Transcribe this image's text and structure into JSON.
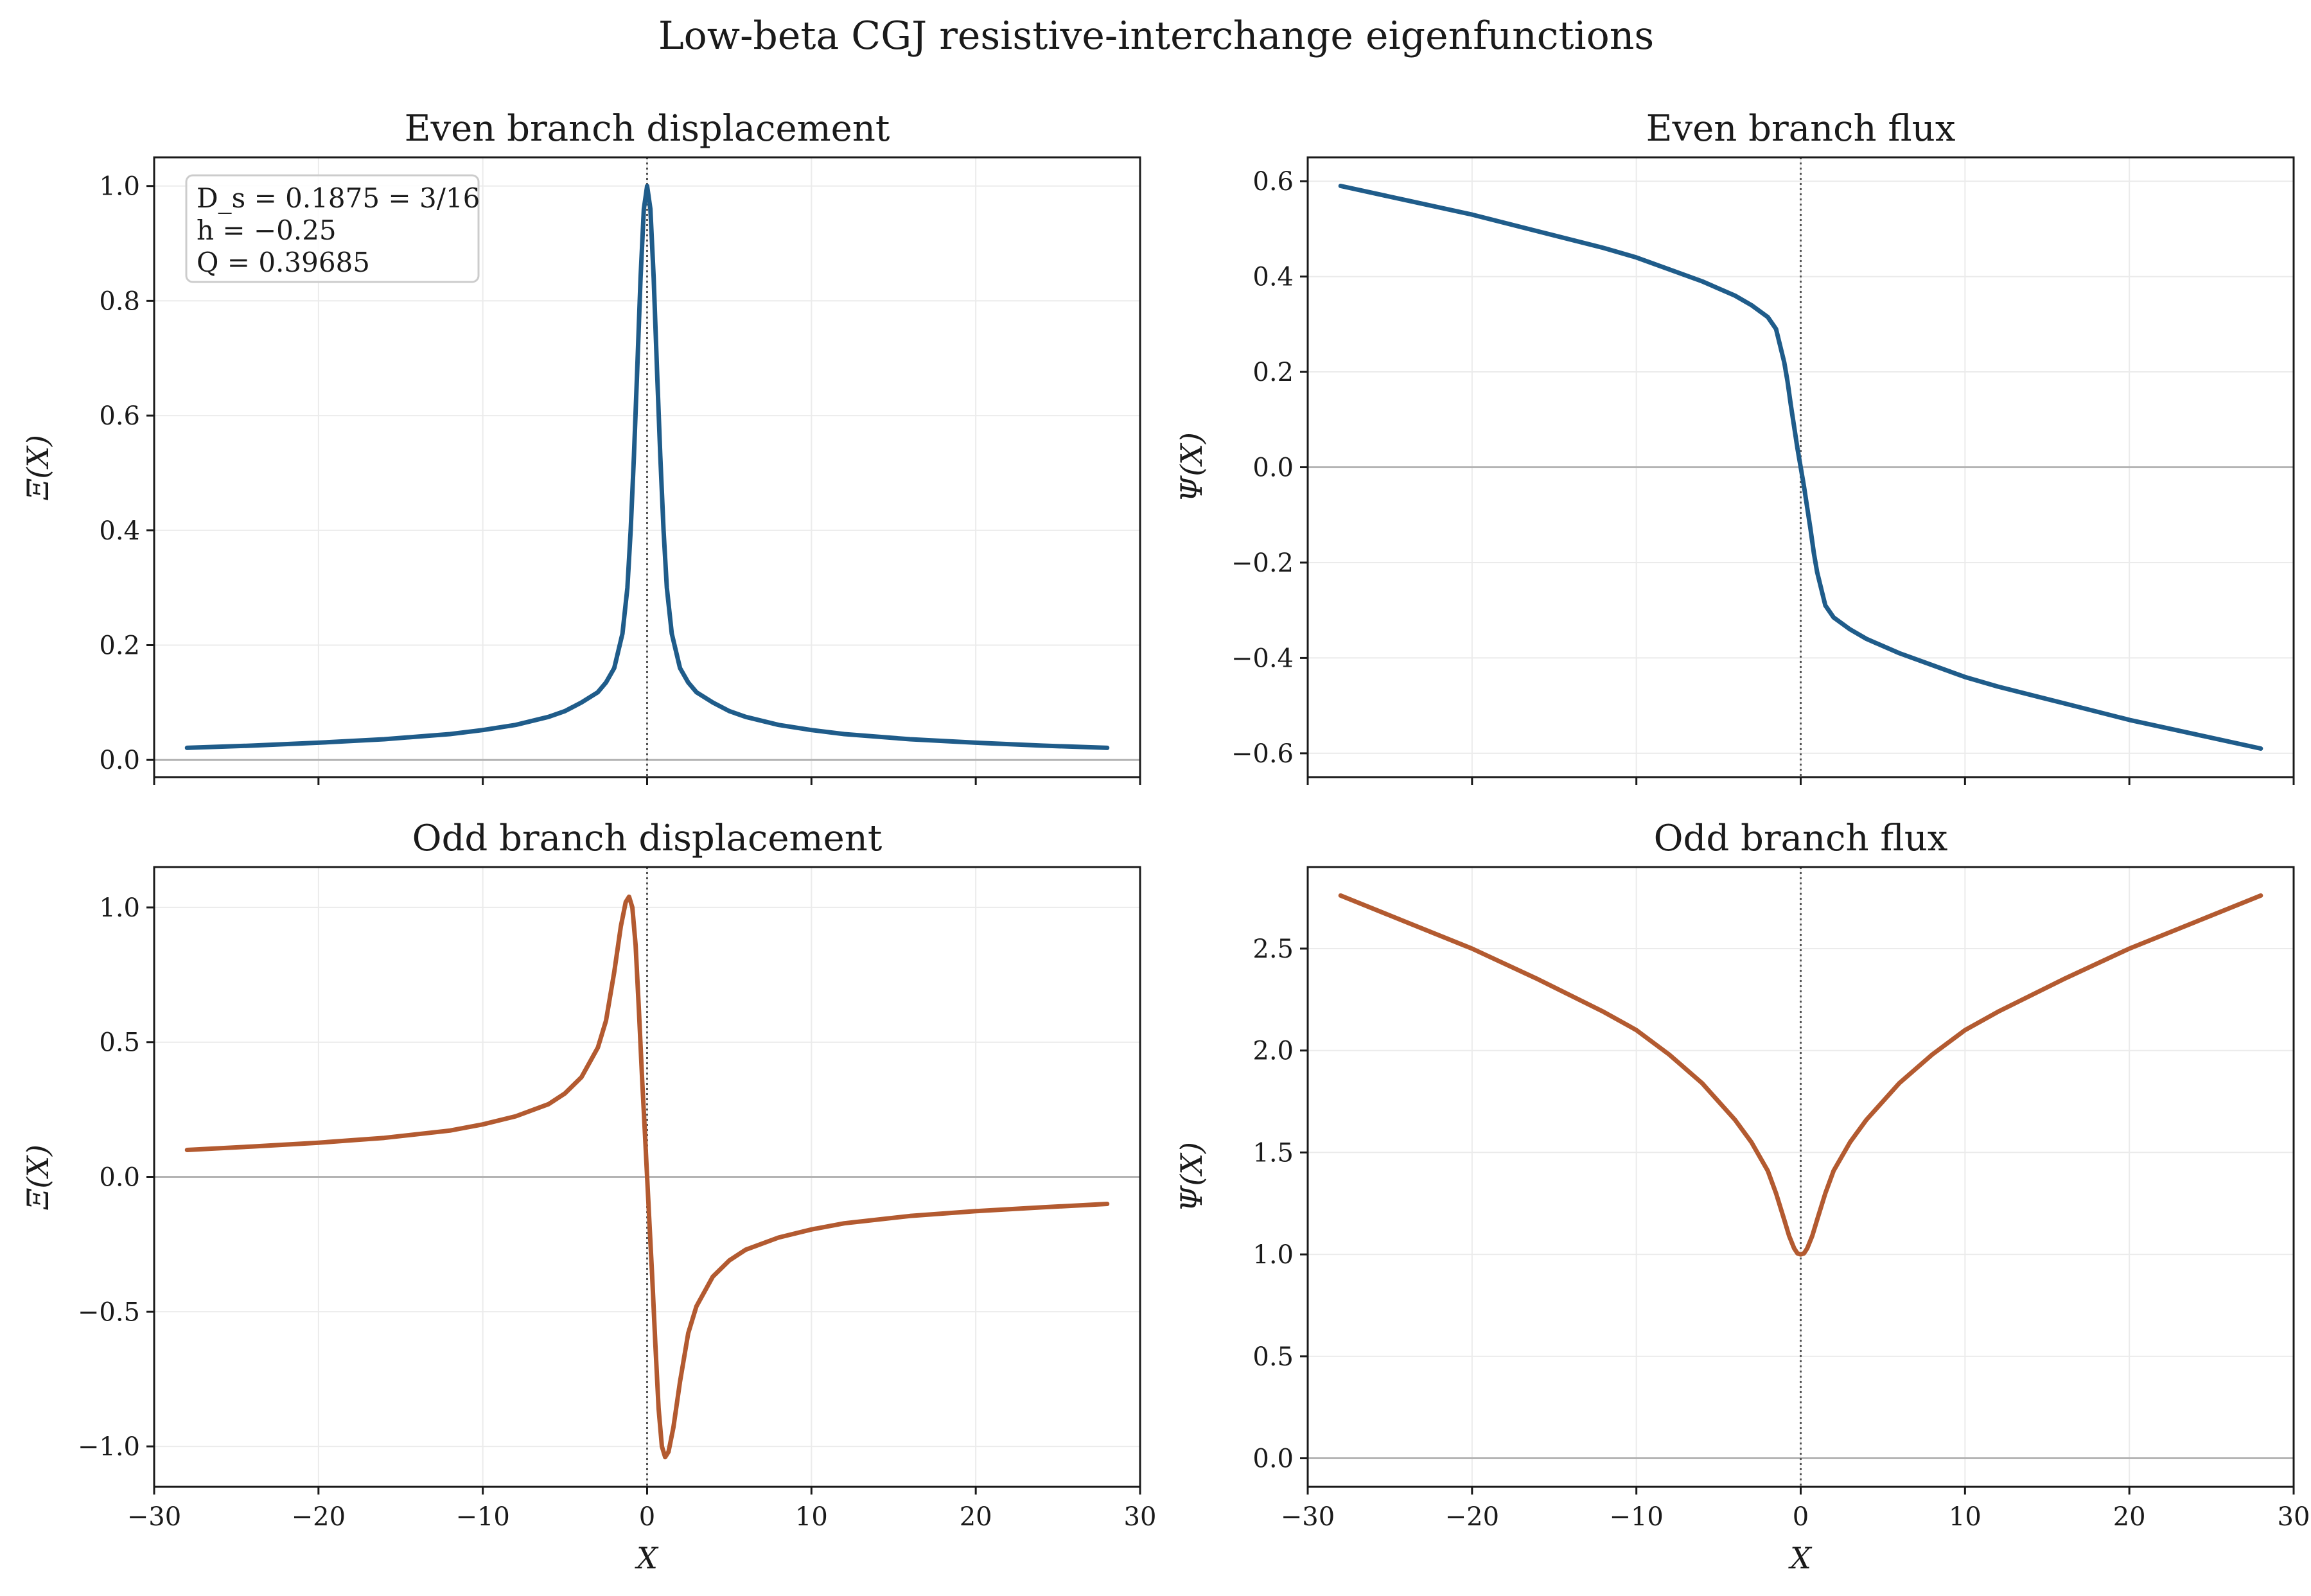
{
  "figure": {
    "title": "Low-beta CGJ resistive-interchange eigenfunctions"
  },
  "annotation": {
    "lines": [
      "D_s = 0.1875 = 3/16",
      "h = −0.25",
      "Q = 0.39685"
    ]
  },
  "colors": {
    "even": "#1f5c8a",
    "odd": "#b35a30",
    "grid": "#ebebeb",
    "zero_line": "#b4b4b4",
    "center_line": "#555555"
  },
  "chart_data": [
    {
      "type": "line",
      "title": "Even branch displacement",
      "xlabel": "",
      "ylabel": "Ξ(X)",
      "xlim": [
        -30,
        30
      ],
      "ylim": [
        -0.03,
        1.05
      ],
      "yticks": [
        0.0,
        0.2,
        0.4,
        0.6,
        0.8,
        1.0
      ],
      "ytick_labels": [
        "0.0",
        "0.2",
        "0.4",
        "0.6",
        "0.8",
        "1.0"
      ],
      "xticks": [
        -30,
        -20,
        -10,
        0,
        10,
        20,
        30
      ],
      "xtick_labels": [],
      "color": "even",
      "x": [
        -28,
        -24,
        -20,
        -16,
        -12,
        -10,
        -8,
        -6,
        -5,
        -4,
        -3,
        -2.5,
        -2,
        -1.5,
        -1.2,
        -1,
        -0.8,
        -0.6,
        -0.4,
        -0.2,
        0,
        0.2,
        0.4,
        0.6,
        0.8,
        1,
        1.2,
        1.5,
        2,
        2.5,
        3,
        4,
        5,
        6,
        8,
        10,
        12,
        16,
        20,
        24,
        28
      ],
      "y": [
        0.021,
        0.025,
        0.03,
        0.036,
        0.045,
        0.052,
        0.061,
        0.075,
        0.085,
        0.1,
        0.118,
        0.135,
        0.16,
        0.22,
        0.3,
        0.4,
        0.53,
        0.68,
        0.84,
        0.96,
        1.0,
        0.96,
        0.84,
        0.68,
        0.53,
        0.4,
        0.3,
        0.22,
        0.16,
        0.135,
        0.118,
        0.1,
        0.085,
        0.075,
        0.061,
        0.052,
        0.045,
        0.036,
        0.03,
        0.025,
        0.021
      ]
    },
    {
      "type": "line",
      "title": "Even branch flux",
      "xlabel": "",
      "ylabel": "Ψ(X)",
      "xlim": [
        -30,
        30
      ],
      "ylim": [
        -0.65,
        0.65
      ],
      "yticks": [
        -0.6,
        -0.4,
        -0.2,
        0.0,
        0.2,
        0.4,
        0.6
      ],
      "ytick_labels": [
        "−0.6",
        "−0.4",
        "−0.2",
        "0.0",
        "0.2",
        "0.4",
        "0.6"
      ],
      "xticks": [
        -30,
        -20,
        -10,
        0,
        10,
        20,
        30
      ],
      "xtick_labels": [],
      "color": "even",
      "x": [
        -28,
        -24,
        -20,
        -16,
        -12,
        -10,
        -8,
        -6,
        -4,
        -3,
        -2,
        -1.5,
        -1,
        -0.8,
        -0.6,
        -0.4,
        -0.2,
        0,
        0.2,
        0.4,
        0.6,
        0.8,
        1,
        1.5,
        2,
        3,
        4,
        6,
        8,
        10,
        12,
        16,
        20,
        24,
        28
      ],
      "y": [
        0.59,
        0.56,
        0.53,
        0.495,
        0.46,
        0.44,
        0.415,
        0.39,
        0.36,
        0.34,
        0.315,
        0.29,
        0.22,
        0.18,
        0.13,
        0.085,
        0.04,
        0.0,
        -0.04,
        -0.085,
        -0.13,
        -0.18,
        -0.22,
        -0.29,
        -0.315,
        -0.34,
        -0.36,
        -0.39,
        -0.415,
        -0.44,
        -0.46,
        -0.495,
        -0.53,
        -0.56,
        -0.59
      ]
    },
    {
      "type": "line",
      "title": "Odd branch displacement",
      "xlabel": "X",
      "ylabel": "Ξ(X)",
      "xlim": [
        -30,
        30
      ],
      "ylim": [
        -1.15,
        1.15
      ],
      "yticks": [
        -1.0,
        -0.5,
        0.0,
        0.5,
        1.0
      ],
      "ytick_labels": [
        "−1.0",
        "−0.5",
        "0.0",
        "0.5",
        "1.0"
      ],
      "xticks": [
        -30,
        -20,
        -10,
        0,
        10,
        20,
        30
      ],
      "xtick_labels": [
        "−30",
        "−20",
        "−10",
        "0",
        "10",
        "20",
        "30"
      ],
      "color": "odd",
      "x": [
        -28,
        -24,
        -20,
        -16,
        -12,
        -10,
        -8,
        -6,
        -5,
        -4,
        -3,
        -2.5,
        -2,
        -1.6,
        -1.3,
        -1.1,
        -0.9,
        -0.7,
        -0.5,
        -0.3,
        -0.15,
        0,
        0.15,
        0.3,
        0.5,
        0.7,
        0.9,
        1.1,
        1.3,
        1.6,
        2,
        2.5,
        3,
        4,
        5,
        6,
        8,
        10,
        12,
        16,
        20,
        24,
        28
      ],
      "y": [
        0.1,
        0.113,
        0.127,
        0.145,
        0.172,
        0.195,
        0.225,
        0.27,
        0.31,
        0.37,
        0.48,
        0.58,
        0.76,
        0.93,
        1.02,
        1.04,
        1.0,
        0.86,
        0.62,
        0.36,
        0.18,
        0.0,
        -0.18,
        -0.36,
        -0.62,
        -0.86,
        -1.0,
        -1.04,
        -1.02,
        -0.93,
        -0.76,
        -0.58,
        -0.48,
        -0.37,
        -0.31,
        -0.27,
        -0.225,
        -0.195,
        -0.172,
        -0.145,
        -0.127,
        -0.113,
        -0.1
      ]
    },
    {
      "type": "line",
      "title": "Odd branch flux",
      "xlabel": "X",
      "ylabel": "Ψ(X)",
      "xlim": [
        -30,
        30
      ],
      "ylim": [
        -0.14,
        2.9
      ],
      "yticks": [
        0.0,
        0.5,
        1.0,
        1.5,
        2.0,
        2.5
      ],
      "ytick_labels": [
        "0.0",
        "0.5",
        "1.0",
        "1.5",
        "2.0",
        "2.5"
      ],
      "xticks": [
        -30,
        -20,
        -10,
        0,
        10,
        20,
        30
      ],
      "xtick_labels": [
        "−30",
        "−20",
        "−10",
        "0",
        "10",
        "20",
        "30"
      ],
      "color": "odd",
      "x": [
        -28,
        -24,
        -20,
        -16,
        -12,
        -10,
        -8,
        -6,
        -4,
        -3,
        -2,
        -1.5,
        -1,
        -0.7,
        -0.4,
        -0.2,
        0,
        0.2,
        0.4,
        0.7,
        1,
        1.5,
        2,
        3,
        4,
        6,
        8,
        10,
        12,
        16,
        20,
        24,
        28
      ],
      "y": [
        2.76,
        2.63,
        2.5,
        2.35,
        2.19,
        2.1,
        1.98,
        1.84,
        1.66,
        1.55,
        1.41,
        1.3,
        1.17,
        1.09,
        1.03,
        1.005,
        1.0,
        1.005,
        1.03,
        1.09,
        1.17,
        1.3,
        1.41,
        1.55,
        1.66,
        1.84,
        1.98,
        2.1,
        2.19,
        2.35,
        2.5,
        2.63,
        2.76
      ]
    }
  ]
}
